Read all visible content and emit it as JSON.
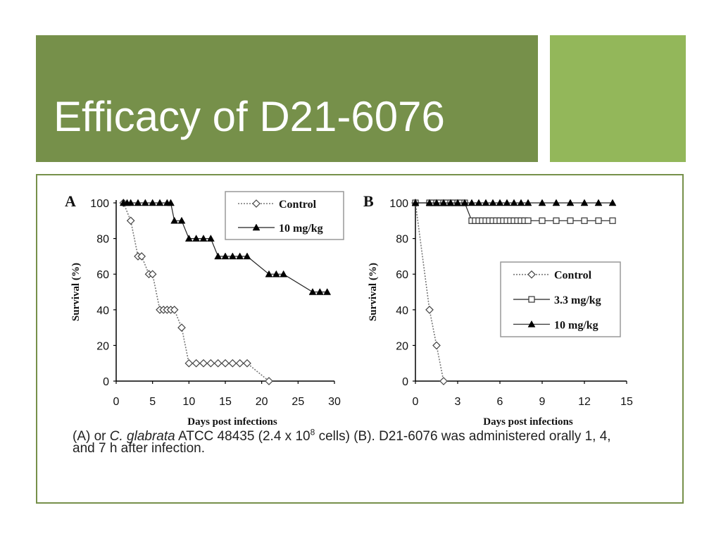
{
  "slide": {
    "title": "Efficacy of D21-6076",
    "colors": {
      "title_band": "#76904a",
      "accent": "#93b75a",
      "border": "#76904a",
      "text_on_band": "#ffffff"
    }
  },
  "caption": {
    "prefix": "(A) or ",
    "species": "C. glabrata",
    "mid": " ATCC 48435 (2.4 x 10",
    "exponent": "8",
    "suffix": " cells) (B). D21-6076 was administered orally 1, 4, and 7 h after infection."
  },
  "chart_data": [
    {
      "panel": "A",
      "type": "line",
      "xlabel": "Days post infections",
      "ylabel": "Survival (%)",
      "xlim": [
        0,
        30
      ],
      "ylim": [
        0,
        100
      ],
      "xticks": [
        0,
        5,
        10,
        15,
        20,
        25,
        30
      ],
      "yticks": [
        0,
        20,
        40,
        60,
        80,
        100
      ],
      "legend_position": "top-right",
      "series": [
        {
          "name": "Control",
          "marker": "open-diamond",
          "line": "dotted",
          "x": [
            1,
            2,
            3,
            3.5,
            4.5,
            5,
            6,
            6.5,
            7,
            7.5,
            8,
            9,
            10,
            11,
            12,
            13,
            14,
            15,
            16,
            17,
            18,
            21
          ],
          "y": [
            100,
            90,
            70,
            70,
            60,
            60,
            40,
            40,
            40,
            40,
            40,
            30,
            10,
            10,
            10,
            10,
            10,
            10,
            10,
            10,
            10,
            0
          ]
        },
        {
          "name": "10 mg/kg",
          "marker": "filled-triangle",
          "line": "solid",
          "x": [
            1,
            1.5,
            2,
            3,
            4,
            5,
            6,
            7,
            7.5,
            8,
            9,
            10,
            11,
            12,
            13,
            14,
            15,
            16,
            17,
            18,
            21,
            22,
            23,
            27,
            28,
            29
          ],
          "y": [
            100,
            100,
            100,
            100,
            100,
            100,
            100,
            100,
            100,
            90,
            90,
            80,
            80,
            80,
            80,
            70,
            70,
            70,
            70,
            70,
            60,
            60,
            60,
            50,
            50,
            50
          ]
        }
      ]
    },
    {
      "panel": "B",
      "type": "line",
      "xlabel": "Days post infections",
      "ylabel": "Survival (%)",
      "xlim": [
        0,
        15
      ],
      "ylim": [
        0,
        100
      ],
      "xticks": [
        0,
        3,
        6,
        9,
        12,
        15
      ],
      "yticks": [
        0,
        20,
        40,
        60,
        80,
        100
      ],
      "legend_position": "center-right",
      "series": [
        {
          "name": "Control",
          "marker": "open-diamond",
          "line": "dotted",
          "x": [
            0,
            1,
            1.5,
            2
          ],
          "y": [
            100,
            40,
            20,
            0
          ]
        },
        {
          "name": "3.3 mg/kg",
          "marker": "open-square",
          "line": "solid",
          "x": [
            0,
            1,
            1.25,
            1.5,
            1.75,
            2,
            2.25,
            2.5,
            2.75,
            3,
            3.25,
            3.5,
            4,
            4.25,
            4.5,
            4.75,
            5,
            5.25,
            5.5,
            5.75,
            6,
            6.25,
            6.5,
            6.75,
            7,
            7.25,
            7.5,
            7.75,
            8,
            9,
            10,
            11,
            12,
            13,
            14
          ],
          "y": [
            100,
            100,
            100,
            100,
            100,
            100,
            100,
            100,
            100,
            100,
            100,
            100,
            90,
            90,
            90,
            90,
            90,
            90,
            90,
            90,
            90,
            90,
            90,
            90,
            90,
            90,
            90,
            90,
            90,
            90,
            90,
            90,
            90,
            90,
            90
          ]
        },
        {
          "name": "10 mg/kg",
          "marker": "filled-triangle",
          "line": "solid",
          "x": [
            0,
            1,
            1.5,
            2,
            2.5,
            3,
            3.5,
            4,
            4.5,
            5,
            5.5,
            6,
            6.5,
            7,
            7.5,
            8,
            9,
            10,
            11,
            12,
            13,
            14
          ],
          "y": [
            100,
            100,
            100,
            100,
            100,
            100,
            100,
            100,
            100,
            100,
            100,
            100,
            100,
            100,
            100,
            100,
            100,
            100,
            100,
            100,
            100,
            100
          ]
        }
      ]
    }
  ]
}
